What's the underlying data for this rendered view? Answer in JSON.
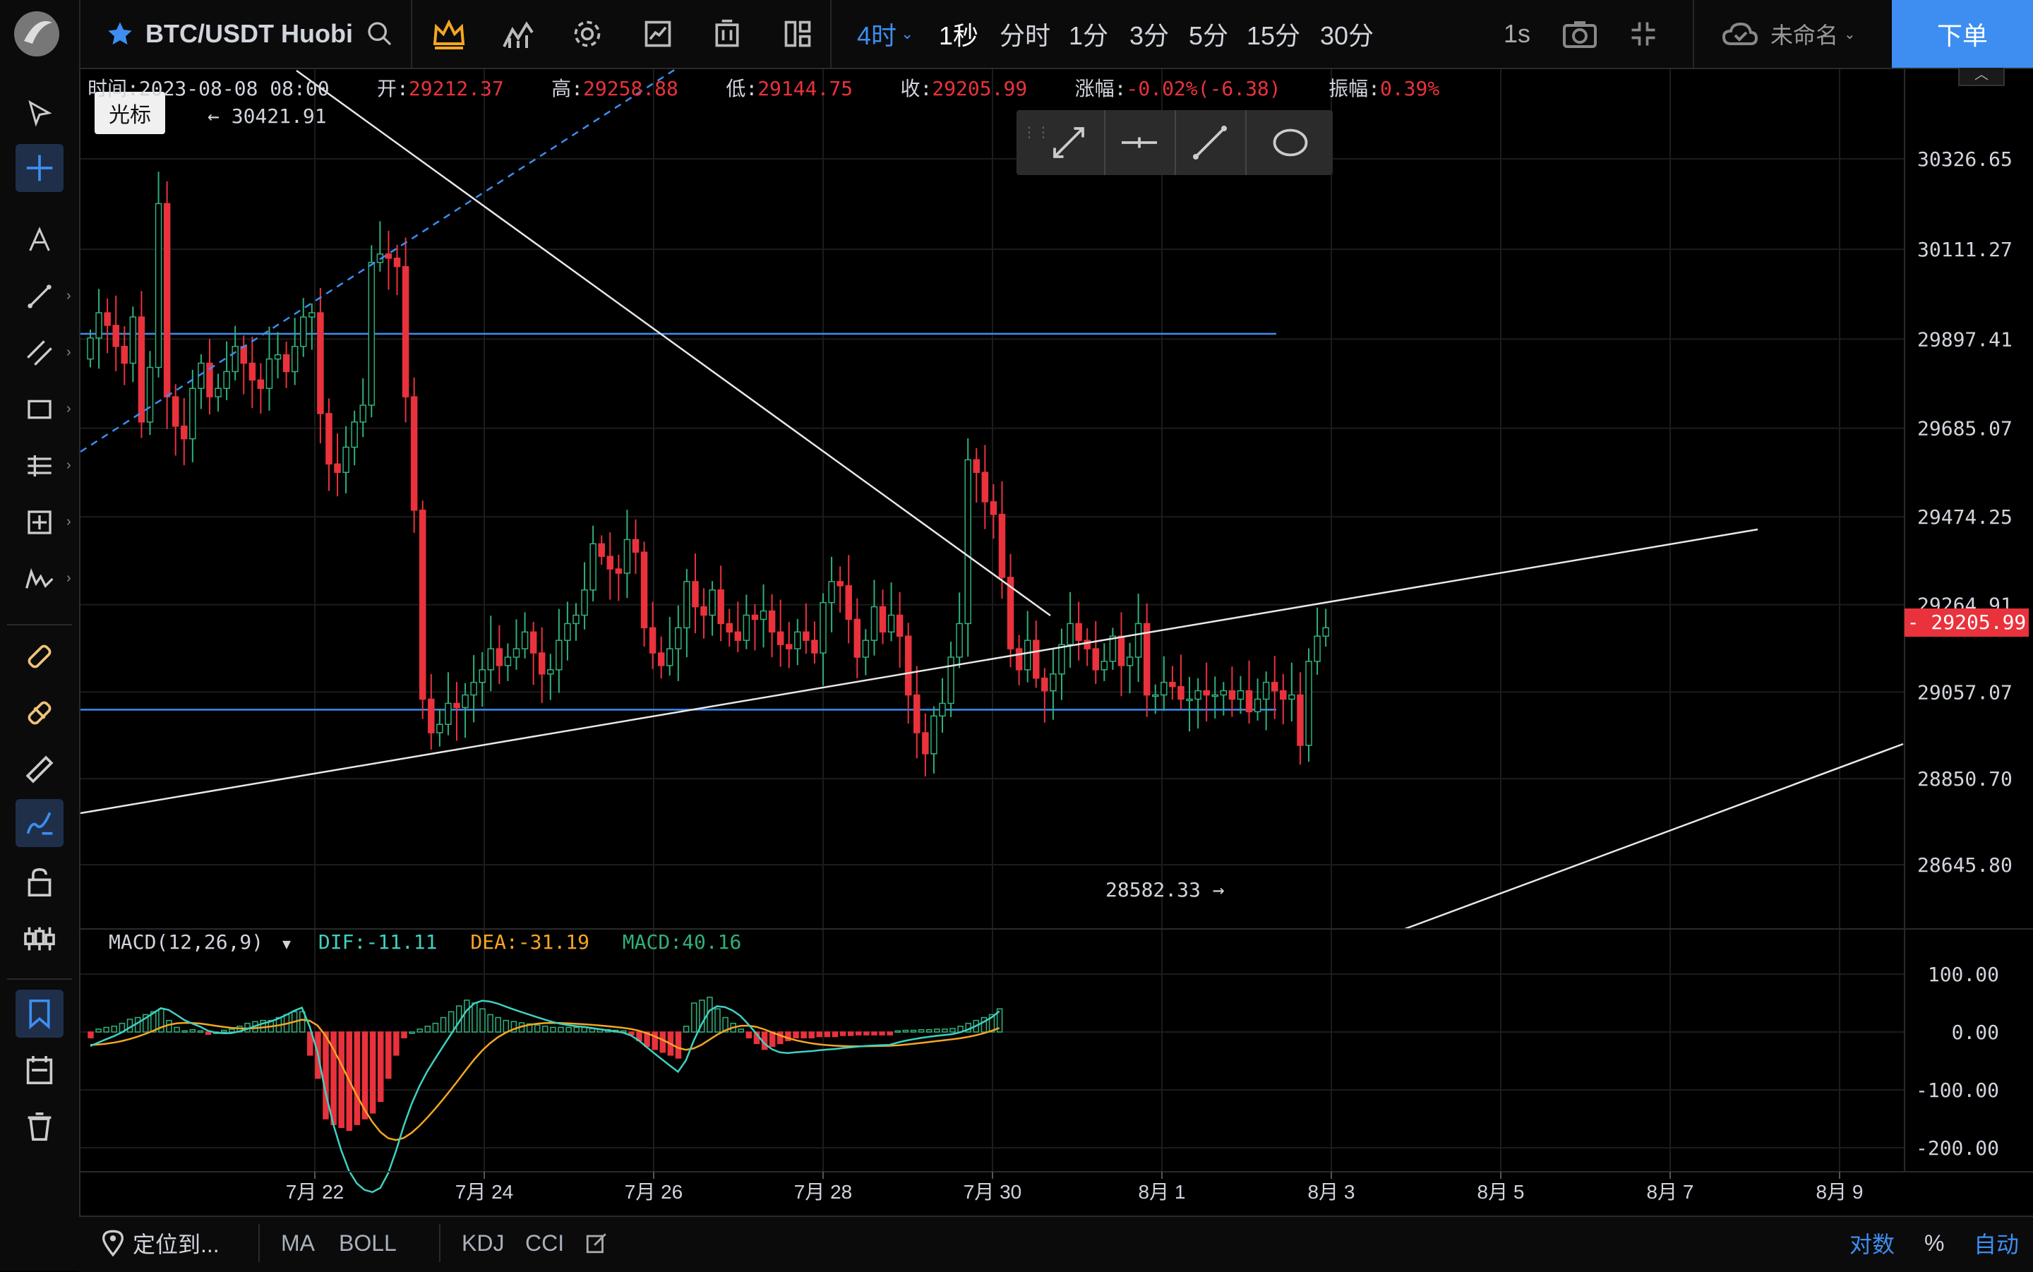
{
  "header": {
    "symbol": "BTC/USDT Huobi",
    "intervals": [
      "4时",
      "1秒",
      "分时",
      "1分",
      "3分",
      "5分",
      "15分",
      "30分"
    ],
    "active_interval": "4时",
    "tick_label": "1s",
    "layout_name": "未命名",
    "order_button": "下单"
  },
  "tooltip": {
    "text": "光标"
  },
  "ohlc": {
    "time_label": "时间:",
    "time": "2023-08-08 08:00",
    "open_label": "开:",
    "open": "29212.37",
    "high_label": "高:",
    "high": "29258.88",
    "low_label": "低:",
    "low": "29144.75",
    "close_label": "收:",
    "close": "29205.99",
    "change_label": "涨幅:",
    "change": "-0.02%(-6.38)",
    "amplitude_label": "振幅:",
    "amplitude": "0.39%"
  },
  "macd": {
    "label": "MACD(12,26,9)",
    "dif": "DIF:-11.11",
    "dea": "DEA:-31.19",
    "macd": "MACD:40.16"
  },
  "markers": {
    "high_marker": "← 30421.91",
    "low_marker": "28582.33 →"
  },
  "bottom": {
    "locate": "定位到...",
    "indicators": [
      "MA",
      "BOLL",
      "KDJ",
      "CCI"
    ],
    "log_label": "对数",
    "percent_label": "%",
    "auto_label": "自动"
  },
  "colors": {
    "up": "#2fb07a",
    "down": "#e9323c",
    "accent": "#3d8ef0",
    "dif_line": "#3fd1c0",
    "dea_line": "#f5a623",
    "hline": "#3d8ef0"
  },
  "chart_data": {
    "type": "candlestick",
    "price_axis_ticks": [
      30326.65,
      30111.27,
      29897.41,
      29685.07,
      29474.25,
      29264.91,
      29057.07,
      28850.7,
      28645.8
    ],
    "current_price": "29205.99",
    "x_tick_labels": [
      "7月 22",
      "7月 24",
      "7月 26",
      "7月 28",
      "7月 30",
      "8月 1",
      "8月 3",
      "8月 5",
      "8月 7",
      "8月 9"
    ],
    "macd_axis_ticks": [
      "100.00",
      "0.00",
      "-100.00",
      "-200.00"
    ],
    "horizontal_levels": [
      29910,
      29015
    ],
    "candles_close": [
      29900,
      29960,
      29930,
      29880,
      29840,
      29950,
      29700,
      29830,
      30220,
      29760,
      29690,
      29660,
      29780,
      29840,
      29760,
      29780,
      29820,
      29880,
      29840,
      29800,
      29780,
      29850,
      29860,
      29820,
      29880,
      29950,
      29960,
      29720,
      29600,
      29580,
      29640,
      29700,
      29740,
      30080,
      30100,
      30090,
      30070,
      29760,
      29490,
      29040,
      28960,
      28980,
      29030,
      29020,
      29050,
      29080,
      29110,
      29160,
      29120,
      29140,
      29160,
      29200,
      29150,
      29100,
      29110,
      29180,
      29220,
      29240,
      29300,
      29410,
      29380,
      29350,
      29340,
      29420,
      29390,
      29210,
      29150,
      29120,
      29160,
      29210,
      29320,
      29260,
      29240,
      29300,
      29220,
      29200,
      29180,
      29240,
      29230,
      29250,
      29200,
      29170,
      29160,
      29200,
      29180,
      29150,
      29270,
      29320,
      29310,
      29230,
      29140,
      29180,
      29260,
      29200,
      29240,
      29190,
      29050,
      28960,
      28910,
      29000,
      29030,
      29140,
      29220,
      29610,
      29580,
      29510,
      29480,
      29330,
      29160,
      29110,
      29180,
      29090,
      29060,
      29100,
      29170,
      29220,
      29180,
      29160,
      29110,
      29130,
      29190,
      29120,
      29140,
      29220,
      29050,
      29050,
      29080,
      29070,
      29040,
      29040,
      29060,
      29050,
      29050,
      29060,
      29040,
      29060,
      29010,
      29040,
      29080,
      29060,
      29040,
      29050,
      28930,
      29130,
      29190,
      29210
    ],
    "macd_hist_values": [
      -10,
      5,
      8,
      10,
      15,
      22,
      25,
      30,
      35,
      40,
      20,
      8,
      2,
      4,
      2,
      -4,
      0,
      3,
      5,
      10,
      15,
      18,
      20,
      20,
      25,
      30,
      35,
      35,
      -40,
      -80,
      -150,
      -160,
      -165,
      -170,
      -160,
      -150,
      -140,
      -120,
      -80,
      -40,
      -10,
      0,
      5,
      10,
      15,
      25,
      35,
      45,
      55,
      50,
      40,
      30,
      25,
      20,
      18,
      16,
      14,
      12,
      10,
      8,
      8,
      8,
      8,
      8,
      6,
      5,
      4,
      3,
      2,
      -5,
      -15,
      -25,
      -30,
      -35,
      -40,
      -45,
      10,
      50,
      55,
      60,
      40,
      25,
      15,
      5,
      -10,
      -20,
      -30,
      -25,
      -20,
      -15,
      -10,
      -10,
      -10,
      -8,
      -8,
      -8,
      -6,
      -6,
      -5,
      -5,
      -5,
      -5,
      -5,
      2,
      3,
      3,
      4,
      4,
      5,
      5,
      6,
      10,
      15,
      20,
      25,
      30,
      40
    ]
  }
}
